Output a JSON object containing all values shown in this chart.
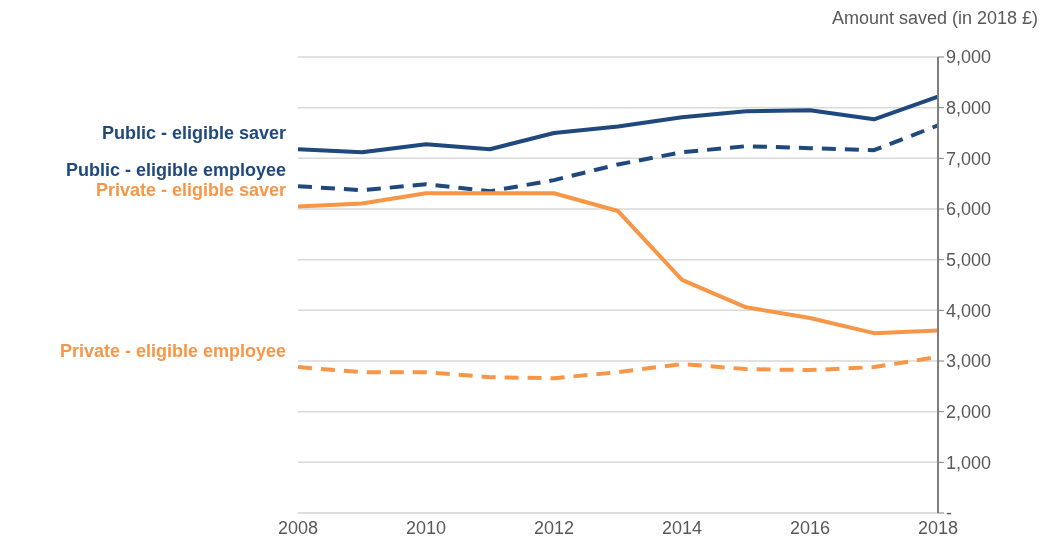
{
  "chart_data": {
    "type": "line",
    "ylabel": "Amount saved (in 2018 £)",
    "x": [
      2008,
      2009,
      2010,
      2011,
      2012,
      2013,
      2014,
      2015,
      2016,
      2017,
      2018
    ],
    "series": [
      {
        "name": "Public - eligible saver",
        "color": "#1f497d",
        "line_style": "solid",
        "values": [
          7180,
          7120,
          7280,
          7180,
          7500,
          7630,
          7810,
          7930,
          7950,
          7770,
          8220
        ]
      },
      {
        "name": "Public - eligible employee",
        "color": "#1f497d",
        "line_style": "dashed",
        "values": [
          6450,
          6370,
          6490,
          6350,
          6570,
          6880,
          7120,
          7240,
          7200,
          7160,
          7650
        ]
      },
      {
        "name": "Private - eligible saver",
        "color": "#f79646",
        "line_style": "solid",
        "values": [
          6050,
          6110,
          6310,
          6310,
          6310,
          5960,
          4600,
          4060,
          3850,
          3550,
          3600
        ]
      },
      {
        "name": "Private - eligible employee",
        "color": "#f79646",
        "line_style": "dashed",
        "values": [
          2880,
          2780,
          2780,
          2680,
          2660,
          2780,
          2940,
          2840,
          2820,
          2880,
          3080
        ]
      }
    ],
    "xlim": [
      2008,
      2018
    ],
    "xticks": [
      2008,
      2010,
      2012,
      2014,
      2016,
      2018
    ],
    "ylim": [
      0,
      9000
    ],
    "yticks": [
      {
        "value": 0,
        "label": "-"
      },
      {
        "value": 1000,
        "label": "1,000"
      },
      {
        "value": 2000,
        "label": "2,000"
      },
      {
        "value": 3000,
        "label": "3,000"
      },
      {
        "value": 4000,
        "label": "4,000"
      },
      {
        "value": 5000,
        "label": "5,000"
      },
      {
        "value": 6000,
        "label": "6,000"
      },
      {
        "value": 7000,
        "label": "7,000"
      },
      {
        "value": 8000,
        "label": "8,000"
      },
      {
        "value": 9000,
        "label": "9,000"
      }
    ],
    "grid": "y",
    "legend": false
  }
}
